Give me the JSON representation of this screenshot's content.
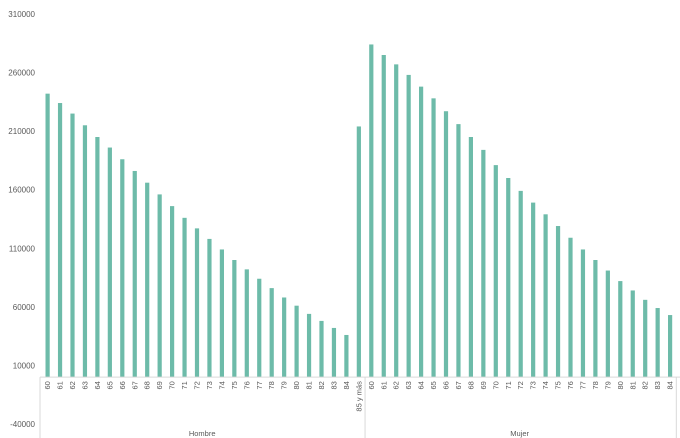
{
  "chart_data": {
    "type": "bar",
    "title": "",
    "xlabel": "",
    "ylabel": "",
    "ylim": [
      -40000,
      310000
    ],
    "yticks": [
      310000,
      260000,
      210000,
      160000,
      110000,
      60000,
      10000,
      -40000
    ],
    "grid": false,
    "legend": "none",
    "bar_color": "#6dbba9",
    "axis_color": "#d9d9d9",
    "text_color": "#595959",
    "groups": [
      {
        "label": "Hombre",
        "categories": [
          "60",
          "61",
          "62",
          "63",
          "64",
          "65",
          "66",
          "67",
          "68",
          "69",
          "70",
          "71",
          "72",
          "73",
          "74",
          "75",
          "76",
          "77",
          "78",
          "79",
          "80",
          "81",
          "82",
          "83",
          "84",
          "85 y más"
        ],
        "values": [
          242000,
          234000,
          225000,
          215000,
          205000,
          196000,
          186000,
          176000,
          166000,
          156000,
          146000,
          136000,
          127000,
          118000,
          109000,
          100000,
          92000,
          84000,
          76000,
          68000,
          61000,
          54000,
          48000,
          42000,
          36000,
          214000
        ]
      },
      {
        "label": "Mujer",
        "categories": [
          "60",
          "61",
          "62",
          "63",
          "64",
          "65",
          "66",
          "67",
          "68",
          "69",
          "70",
          "71",
          "72",
          "73",
          "74",
          "75",
          "76",
          "77",
          "78",
          "79",
          "80",
          "81",
          "82",
          "83",
          "84"
        ],
        "values": [
          284000,
          275000,
          267000,
          258000,
          248000,
          238000,
          227000,
          216000,
          205000,
          194000,
          181000,
          170000,
          159000,
          149000,
          139000,
          129000,
          119000,
          109000,
          100000,
          91000,
          82000,
          74000,
          66000,
          59000,
          53000
        ]
      }
    ]
  }
}
